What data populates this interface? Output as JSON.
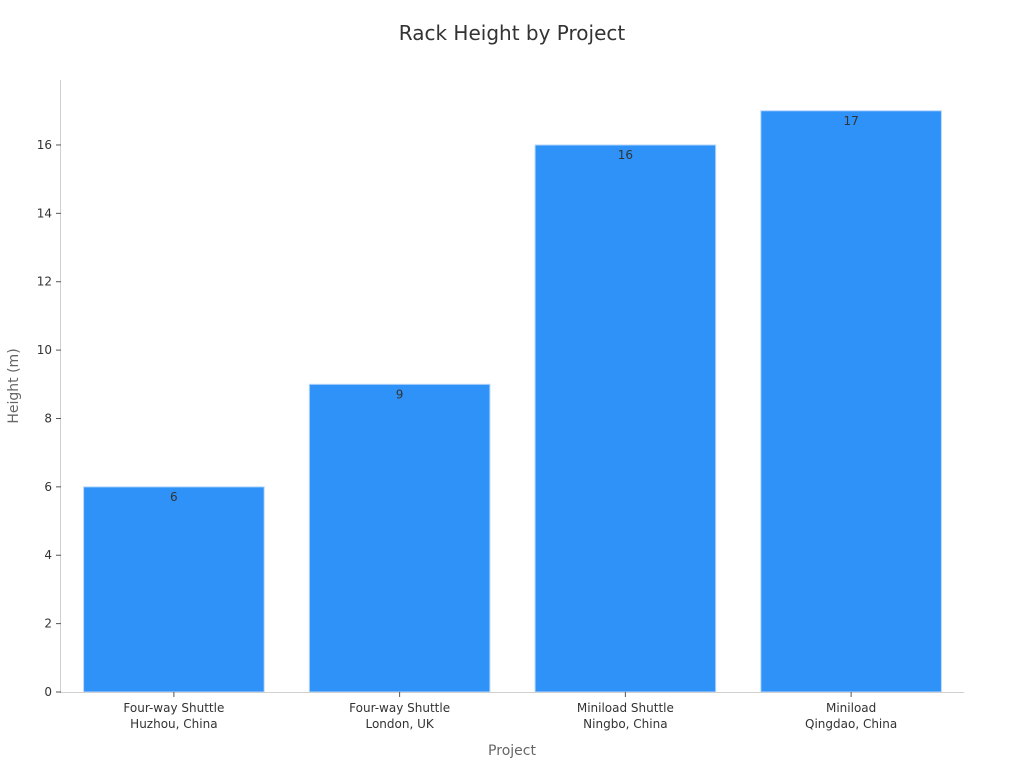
{
  "chart_data": {
    "type": "bar",
    "title": "Rack Height by Project",
    "xlabel": "Project",
    "ylabel": "Height (m)",
    "categories": [
      [
        "Four-way Shuttle",
        "Huzhou, China"
      ],
      [
        "Four-way Shuttle",
        "London, UK"
      ],
      [
        "Miniload Shuttle",
        "Ningbo, China"
      ],
      [
        "Miniload",
        "Qingdao, China"
      ]
    ],
    "values": [
      6,
      9,
      16,
      17
    ],
    "data_labels": [
      "6",
      "9",
      "16",
      "17"
    ],
    "ylim": [
      0,
      17.9
    ],
    "yticks": [
      0,
      2,
      4,
      6,
      8,
      10,
      12,
      14,
      16
    ],
    "bar_color": "#2f92f8",
    "grid": false,
    "legend": "none"
  }
}
